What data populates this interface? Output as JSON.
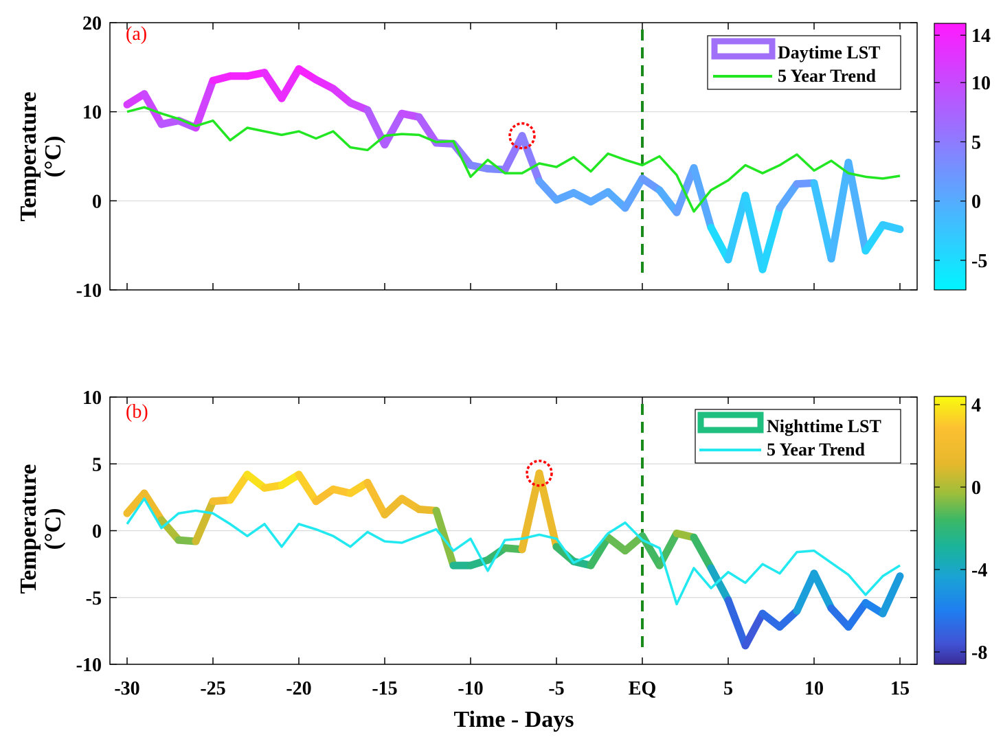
{
  "chart_data": [
    {
      "type": "line",
      "panel_label": "(a)",
      "ylabel_line1": "Temperature",
      "ylabel_line2": "(°C)",
      "xlim": [
        -30,
        15
      ],
      "ylim": [
        -10,
        20
      ],
      "yticks": [
        -10,
        0,
        10,
        20
      ],
      "y_gridlines": [
        0,
        10
      ],
      "grid": "horizontal",
      "event_marker": {
        "x": 0,
        "label": "EQ",
        "style": "dashed",
        "color": "#1a8a1a"
      },
      "highlight_point": {
        "x": -7,
        "y": 7.3
      },
      "legend_position": "top-right",
      "colormap": "cool",
      "colorbar": {
        "range": [
          -7.5,
          15
        ],
        "ticks": [
          14,
          10,
          5,
          0,
          -5
        ]
      },
      "series": [
        {
          "name": "Daytime LST",
          "color": "#a070f8",
          "x": [
            -30,
            -29,
            -28,
            -27,
            -26,
            -25,
            -24,
            -23,
            -22,
            -21,
            -20,
            -19,
            -18,
            -17,
            -16,
            -15,
            -14,
            -13,
            -12,
            -11,
            -10,
            -9,
            -8,
            -7,
            -6,
            -5,
            -4,
            -3,
            -2,
            -1,
            0,
            1,
            2,
            3,
            4,
            5,
            6,
            7,
            8,
            9,
            10,
            11,
            12,
            13,
            14,
            15
          ],
          "values": [
            10.8,
            12.0,
            8.6,
            9.0,
            8.2,
            13.5,
            14.0,
            14.0,
            14.4,
            11.5,
            14.8,
            13.6,
            12.6,
            11.0,
            10.2,
            6.3,
            9.8,
            9.4,
            6.5,
            6.4,
            4.0,
            3.6,
            3.5,
            7.3,
            2.2,
            0.1,
            0.9,
            -0.1,
            1.0,
            -0.8,
            2.5,
            1.2,
            -1.3,
            3.7,
            -3.0,
            -6.6,
            0.6,
            -7.7,
            -0.8,
            1.9,
            2.0,
            -6.5,
            4.3,
            -5.6,
            -2.7,
            -3.2
          ]
        },
        {
          "name": "5 Year Trend",
          "color": "#22e622",
          "x": [
            -30,
            -29,
            -28,
            -27,
            -26,
            -25,
            -24,
            -23,
            -22,
            -21,
            -20,
            -19,
            -18,
            -17,
            -16,
            -15,
            -14,
            -13,
            -12,
            -11,
            -10,
            -9,
            -8,
            -7,
            -6,
            -5,
            -4,
            -3,
            -2,
            -1,
            0,
            1,
            2,
            3,
            4,
            5,
            6,
            7,
            8,
            9,
            10,
            11,
            12,
            13,
            14,
            15
          ],
          "values": [
            10.0,
            10.5,
            9.8,
            9.2,
            8.4,
            9.0,
            6.8,
            8.2,
            7.8,
            7.4,
            7.8,
            7.0,
            7.8,
            6.0,
            5.7,
            7.3,
            7.5,
            7.4,
            6.6,
            6.7,
            2.7,
            4.6,
            3.1,
            3.1,
            4.2,
            3.8,
            4.9,
            3.3,
            5.3,
            4.6,
            4.0,
            5.0,
            2.9,
            -1.2,
            1.2,
            2.3,
            4.0,
            3.1,
            4.0,
            5.2,
            3.4,
            4.5,
            3.1,
            2.7,
            2.5,
            2.8
          ]
        }
      ]
    },
    {
      "type": "line",
      "panel_label": "(b)",
      "ylabel_line1": "Temperature",
      "ylabel_line2": "(°C)",
      "xlabel": "Time - Days",
      "xlim": [
        -30,
        15
      ],
      "ylim": [
        -10,
        10
      ],
      "xticks": [
        -30,
        -25,
        -20,
        -15,
        -10,
        -5,
        0,
        5,
        10,
        15
      ],
      "xtick_labels": [
        "-30",
        "-25",
        "-20",
        "-15",
        "-10",
        "-5",
        "EQ",
        "5",
        "10",
        "15"
      ],
      "yticks": [
        -10,
        -5,
        0,
        5,
        10
      ],
      "y_gridlines": [
        -5,
        0,
        5
      ],
      "grid": "horizontal",
      "event_marker": {
        "x": 0,
        "label": "EQ",
        "style": "dashed",
        "color": "#1a8a1a"
      },
      "highlight_point": {
        "x": -6,
        "y": 4.3
      },
      "legend_position": "top-right",
      "colormap": "parula",
      "colorbar": {
        "range": [
          -8.6,
          4.4
        ],
        "ticks": [
          4,
          0,
          -4,
          -8
        ]
      },
      "series": [
        {
          "name": "Nighttime LST",
          "color": "#1fbf80",
          "x": [
            -30,
            -29,
            -28,
            -27,
            -26,
            -25,
            -24,
            -23,
            -22,
            -21,
            -20,
            -19,
            -18,
            -17,
            -16,
            -15,
            -14,
            -13,
            -12,
            -11,
            -10,
            -9,
            -8,
            -7,
            -6,
            -5,
            -4,
            -3,
            -2,
            -1,
            0,
            1,
            2,
            3,
            4,
            5,
            6,
            7,
            8,
            9,
            10,
            11,
            12,
            13,
            14,
            15
          ],
          "values": [
            1.3,
            2.8,
            0.8,
            -0.7,
            -0.8,
            2.2,
            2.3,
            4.2,
            3.2,
            3.4,
            4.2,
            2.2,
            3.1,
            2.8,
            3.6,
            1.2,
            2.4,
            1.6,
            1.5,
            -2.6,
            -2.6,
            -2.2,
            -1.3,
            -1.4,
            4.3,
            -1.2,
            -2.3,
            -2.6,
            -0.5,
            -1.5,
            -0.4,
            -2.6,
            -0.2,
            -0.5,
            -2.8,
            -5.2,
            -8.6,
            -6.2,
            -7.2,
            -6.0,
            -3.2,
            -5.8,
            -7.2,
            -5.4,
            -6.2,
            -3.4
          ]
        },
        {
          "name": "5 Year Trend",
          "color": "#22e8f0",
          "x": [
            -30,
            -29,
            -28,
            -27,
            -26,
            -25,
            -24,
            -23,
            -22,
            -21,
            -20,
            -19,
            -18,
            -17,
            -16,
            -15,
            -14,
            -13,
            -12,
            -11,
            -10,
            -9,
            -8,
            -7,
            -6,
            -5,
            -4,
            -3,
            -2,
            -1,
            0,
            1,
            2,
            3,
            4,
            5,
            6,
            7,
            8,
            9,
            10,
            11,
            12,
            13,
            14,
            15
          ],
          "values": [
            0.5,
            2.4,
            0.2,
            1.3,
            1.5,
            1.3,
            0.5,
            -0.4,
            0.5,
            -1.2,
            0.5,
            0.1,
            -0.4,
            -1.2,
            -0.1,
            -0.8,
            -0.9,
            -0.4,
            0.1,
            -1.5,
            -0.6,
            -3.0,
            -0.7,
            -0.6,
            -0.3,
            -0.6,
            -2.4,
            -1.8,
            -0.2,
            0.6,
            -0.7,
            -1.3,
            -5.5,
            -2.8,
            -4.3,
            -3.1,
            -3.9,
            -2.5,
            -3.2,
            -1.6,
            -1.5,
            -2.4,
            -3.3,
            -4.8,
            -3.4,
            -2.6
          ]
        }
      ]
    }
  ]
}
